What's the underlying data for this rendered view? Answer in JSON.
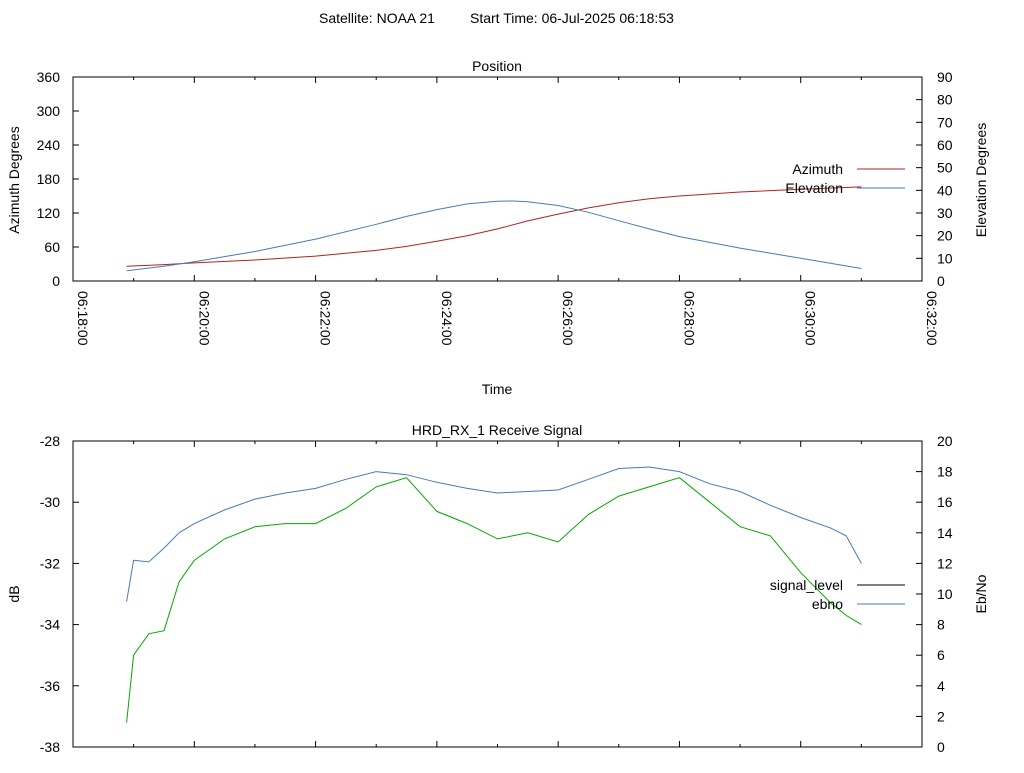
{
  "header": {
    "satellite": "Satellite: NOAA 21",
    "start_time": "Start Time: 06-Jul-2025 06:18:53"
  },
  "colors": {
    "azimuth": "#b22222",
    "elevation": "#4a7ab5",
    "signal_level": "#00aa00",
    "ebno": "#4a7ab5",
    "legend_signal_level": "#000000",
    "legend_ebno": "#4a7ab5"
  },
  "chart_data": [
    {
      "type": "line",
      "title": "Position",
      "xlabel": "Time",
      "ylabel": "Azimuth Degrees",
      "y2label": "Elevation Degrees",
      "xticks": [
        "06:18:00",
        "06:20:00",
        "06:22:00",
        "06:24:00",
        "06:26:00",
        "06:28:00",
        "06:30:00",
        "06:32:00"
      ],
      "xlim": [
        "06:18:00",
        "06:32:00"
      ],
      "ylim": [
        0,
        360
      ],
      "yticks": [
        0,
        60,
        120,
        180,
        240,
        300,
        360
      ],
      "y2lim": [
        0,
        90
      ],
      "y2ticks": [
        0,
        10,
        20,
        30,
        40,
        50,
        60,
        70,
        80,
        90
      ],
      "legend_position": "right",
      "grid": false,
      "series": [
        {
          "name": "Azimuth",
          "axis": "y",
          "x": [
            "06:18:53",
            "06:19:30",
            "06:20:00",
            "06:21:00",
            "06:22:00",
            "06:23:00",
            "06:23:30",
            "06:24:00",
            "06:24:30",
            "06:25:00",
            "06:25:30",
            "06:26:00",
            "06:26:30",
            "06:27:00",
            "06:27:30",
            "06:28:00",
            "06:29:00",
            "06:30:00",
            "06:31:00"
          ],
          "values": [
            26,
            29,
            32,
            37,
            44,
            54,
            61,
            70,
            80,
            92,
            106,
            118,
            129,
            138,
            145,
            150,
            157,
            162,
            166
          ]
        },
        {
          "name": "Elevation",
          "axis": "y2",
          "x": [
            "06:18:53",
            "06:19:30",
            "06:20:00",
            "06:21:00",
            "06:22:00",
            "06:23:00",
            "06:23:30",
            "06:24:00",
            "06:24:30",
            "06:25:00",
            "06:25:15",
            "06:25:30",
            "06:26:00",
            "06:26:30",
            "06:27:00",
            "06:27:30",
            "06:28:00",
            "06:29:00",
            "06:30:00",
            "06:31:00"
          ],
          "values": [
            4.5,
            6.5,
            8.5,
            13.0,
            18.5,
            25.0,
            28.5,
            31.5,
            34.0,
            35.2,
            35.3,
            35.0,
            33.3,
            30.3,
            26.6,
            23.0,
            19.6,
            14.5,
            10.0,
            5.5
          ]
        }
      ]
    },
    {
      "type": "line",
      "title": "HRD_RX_1 Receive Signal",
      "xlabel": "",
      "ylabel": "dB",
      "y2label": "Eb/No",
      "xlim": [
        "06:18:00",
        "06:32:00"
      ],
      "ylim": [
        -38,
        -28
      ],
      "yticks": [
        -38,
        -36,
        -34,
        -32,
        -30,
        -28
      ],
      "y2lim": [
        0,
        20
      ],
      "y2ticks": [
        0,
        2,
        4,
        6,
        8,
        10,
        12,
        14,
        16,
        18,
        20
      ],
      "legend_position": "right",
      "grid": false,
      "series": [
        {
          "name": "signal_level",
          "axis": "y",
          "x": [
            "06:18:53",
            "06:19:00",
            "06:19:15",
            "06:19:30",
            "06:19:45",
            "06:20:00",
            "06:20:30",
            "06:21:00",
            "06:21:30",
            "06:22:00",
            "06:22:30",
            "06:23:00",
            "06:23:30",
            "06:24:00",
            "06:24:30",
            "06:25:00",
            "06:25:30",
            "06:26:00",
            "06:26:30",
            "06:27:00",
            "06:27:30",
            "06:28:00",
            "06:28:30",
            "06:29:00",
            "06:29:30",
            "06:30:00",
            "06:30:30",
            "06:30:45",
            "06:31:00"
          ],
          "values": [
            -37.2,
            -35.0,
            -34.3,
            -34.2,
            -32.6,
            -31.9,
            -31.2,
            -30.8,
            -30.7,
            -30.7,
            -30.2,
            -29.5,
            -29.2,
            -30.3,
            -30.7,
            -31.2,
            -31.0,
            -31.3,
            -30.4,
            -29.8,
            -29.5,
            -29.2,
            -30.0,
            -30.8,
            -31.1,
            -32.3,
            -33.3,
            -33.7,
            -34.0
          ]
        },
        {
          "name": "ebno",
          "axis": "y2",
          "x": [
            "06:18:53",
            "06:19:00",
            "06:19:15",
            "06:19:30",
            "06:19:45",
            "06:20:00",
            "06:20:30",
            "06:21:00",
            "06:21:30",
            "06:22:00",
            "06:22:30",
            "06:23:00",
            "06:23:30",
            "06:24:00",
            "06:24:30",
            "06:25:00",
            "06:25:30",
            "06:26:00",
            "06:26:30",
            "06:27:00",
            "06:27:30",
            "06:28:00",
            "06:28:30",
            "06:29:00",
            "06:29:30",
            "06:30:00",
            "06:30:30",
            "06:30:45",
            "06:31:00"
          ],
          "values": [
            9.5,
            12.2,
            12.1,
            13.0,
            14.0,
            14.6,
            15.5,
            16.2,
            16.6,
            16.9,
            17.5,
            18.0,
            17.8,
            17.3,
            16.9,
            16.6,
            16.7,
            16.8,
            17.5,
            18.2,
            18.3,
            18.0,
            17.2,
            16.7,
            15.8,
            15.0,
            14.3,
            13.8,
            12.0
          ]
        }
      ]
    }
  ]
}
